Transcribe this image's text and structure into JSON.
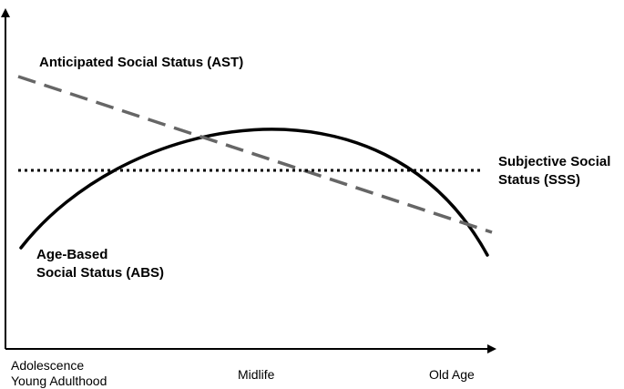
{
  "labels": {
    "ast": "Anticipated Social Status (AST)",
    "sss_line1": "Subjective Social",
    "sss_line2": "Status (SSS)",
    "abs_line1": "Age-Based",
    "abs_line2": "Social Status (ABS)"
  },
  "x_axis_ticks": {
    "start_line1": "Adolescence",
    "start_line2": "Young Adulthood",
    "middle": "Midlife",
    "end": "Old Age"
  },
  "colors": {
    "axis": "#000000",
    "abs_curve": "#000000",
    "ast_line": "#666666",
    "sss_line": "#000000"
  },
  "line_styles": {
    "abs_curve": "solid",
    "ast_line": "dashed",
    "sss_line": "dotted"
  }
}
